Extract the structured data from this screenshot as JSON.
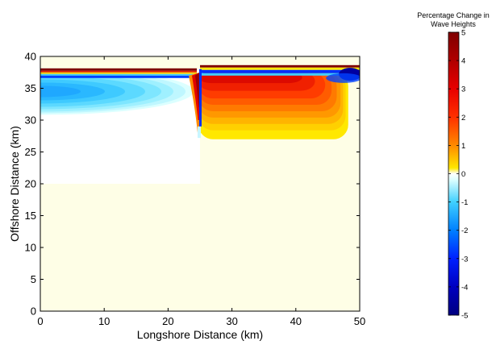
{
  "chart_data": {
    "type": "heatmap",
    "title": "",
    "xlabel": "Longshore Distance (km)",
    "ylabel": "Offshore Distance (km)",
    "xlim": [
      0,
      50
    ],
    "ylim": [
      0,
      40
    ],
    "xticks": [
      0,
      10,
      20,
      30,
      40,
      50
    ],
    "yticks": [
      0,
      5,
      10,
      15,
      20,
      25,
      30,
      35,
      40
    ],
    "colorbar": {
      "title_lines": [
        "Percentage Change in",
        "Wave Heights"
      ],
      "range": [
        -5,
        5
      ],
      "ticks": [
        5,
        4,
        3,
        2,
        1,
        0,
        -1,
        -2,
        -3,
        -4,
        -5
      ],
      "colormap": "jet with white band near zero",
      "placement": "right"
    },
    "field_summary": {
      "background_value": 0,
      "left_region": {
        "x_range": [
          0,
          25
        ],
        "y_range": [
          27,
          38
        ],
        "min_value": -1.3,
        "description": "negative change offshore of left shoreline"
      },
      "right_region": {
        "x_range": [
          25,
          50
        ],
        "y_range": [
          27,
          38
        ],
        "max_value": 3.0,
        "description": "positive change offshore of right shoreline"
      },
      "unchanged_land_region": {
        "x_range": [
          0,
          25
        ],
        "y_range": [
          20,
          27
        ]
      },
      "step_x": 25
    },
    "colors": {
      "field_background": "#fefee6",
      "white_band": "#ffffff"
    }
  }
}
